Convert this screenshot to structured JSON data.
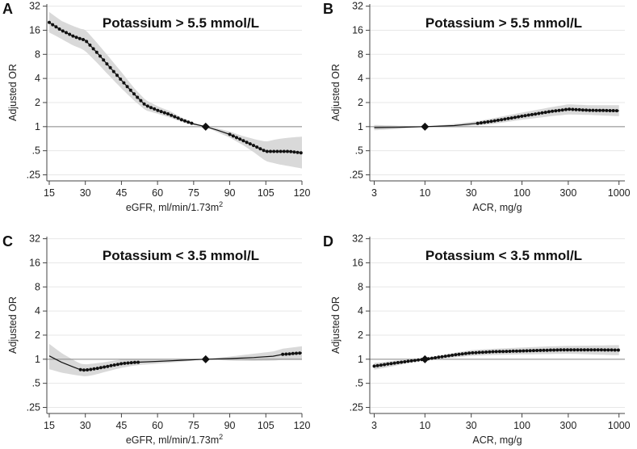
{
  "chart_data": [
    {
      "panel": "A",
      "type": "line",
      "title": "Potassium > 5.5 mmol/L",
      "xlabel": "eGFR, ml/min/1.73m",
      "xlabel_sup": "2",
      "ylabel": "Adjusted OR",
      "xscale": "linear",
      "yscale": "log",
      "xlim": [
        14,
        120
      ],
      "ylim": [
        0.21,
        34
      ],
      "xticks": [
        15,
        30,
        45,
        60,
        75,
        90,
        105,
        120
      ],
      "xtick_labels": [
        "15",
        "30",
        "45",
        "60",
        "75",
        "90",
        "105",
        "120"
      ],
      "yticks": [
        0.25,
        0.5,
        1,
        2,
        4,
        8,
        16,
        32
      ],
      "ytick_labels": [
        ".25",
        ".5",
        "1",
        "2",
        "4",
        "8",
        "16",
        "32"
      ],
      "grid": true,
      "reference_line": 1,
      "reference_point": [
        80,
        1
      ],
      "series": [
        {
          "name": "Adjusted OR",
          "x": [
            15,
            20,
            25,
            28,
            30,
            35,
            40,
            45,
            50,
            55,
            60,
            65,
            70,
            75,
            80,
            85,
            90,
            95,
            100,
            105,
            110,
            115,
            120
          ],
          "values": [
            20,
            16,
            13.5,
            12.5,
            12,
            8.3,
            5.6,
            3.8,
            2.6,
            1.85,
            1.6,
            1.42,
            1.22,
            1.08,
            1,
            0.9,
            0.8,
            0.68,
            0.58,
            0.49,
            0.49,
            0.49,
            0.47
          ],
          "lower": [
            15,
            12.5,
            10.3,
            9.5,
            8.8,
            6.2,
            4.3,
            3.0,
            2.15,
            1.6,
            1.45,
            1.3,
            1.15,
            1.05,
            1,
            0.85,
            0.73,
            0.6,
            0.48,
            0.37,
            0.34,
            0.32,
            0.3
          ],
          "upper": [
            27,
            21,
            18,
            16.7,
            16.3,
            11,
            7.3,
            4.8,
            3.1,
            2.15,
            1.8,
            1.57,
            1.3,
            1.12,
            1,
            0.95,
            0.87,
            0.77,
            0.7,
            0.65,
            0.7,
            0.73,
            0.75
          ],
          "marker_range": [
            [
              15,
              75
            ],
            [
              90,
              120
            ]
          ]
        }
      ]
    },
    {
      "panel": "B",
      "type": "line",
      "title": "Potassium > 5.5 mmol/L",
      "xlabel": "ACR, mg/g",
      "xlabel_sup": "",
      "ylabel": "Adjusted OR",
      "xscale": "log",
      "yscale": "log",
      "xlim": [
        2.7,
        1150
      ],
      "ylim": [
        0.21,
        34
      ],
      "xticks": [
        3,
        10,
        30,
        100,
        300,
        1000
      ],
      "xtick_labels": [
        "3",
        "10",
        "30",
        "100",
        "300",
        "1000"
      ],
      "yticks": [
        0.25,
        0.5,
        1,
        2,
        4,
        8,
        16,
        32
      ],
      "ytick_labels": [
        ".25",
        ".5",
        "1",
        "2",
        "4",
        "8",
        "16",
        "32"
      ],
      "grid": true,
      "reference_line": 1,
      "reference_point": [
        10,
        1
      ],
      "series": [
        {
          "name": "Adjusted OR",
          "x": [
            3,
            5,
            10,
            20,
            35,
            50,
            100,
            200,
            300,
            500,
            1000
          ],
          "values": [
            0.97,
            0.98,
            1,
            1.03,
            1.1,
            1.17,
            1.35,
            1.55,
            1.65,
            1.6,
            1.58
          ],
          "lower": [
            0.9,
            0.93,
            1,
            0.99,
            1.04,
            1.08,
            1.22,
            1.35,
            1.42,
            1.4,
            1.35
          ],
          "upper": [
            1.05,
            1.03,
            1,
            1.08,
            1.17,
            1.27,
            1.5,
            1.75,
            1.9,
            1.85,
            1.85
          ],
          "marker_range": [
            [
              35,
              1000
            ]
          ]
        }
      ]
    },
    {
      "panel": "C",
      "type": "line",
      "title": "Potassium < 3.5 mmol/L",
      "xlabel": "eGFR, ml/min/1.73m",
      "xlabel_sup": "2",
      "ylabel": "Adjusted OR",
      "xscale": "linear",
      "yscale": "log",
      "xlim": [
        14,
        120
      ],
      "ylim": [
        0.21,
        34
      ],
      "xticks": [
        15,
        30,
        45,
        60,
        75,
        90,
        105,
        120
      ],
      "xtick_labels": [
        "15",
        "30",
        "45",
        "60",
        "75",
        "90",
        "105",
        "120"
      ],
      "yticks": [
        0.25,
        0.5,
        1,
        2,
        4,
        8,
        16,
        32
      ],
      "ytick_labels": [
        ".25",
        ".5",
        "1",
        "2",
        "4",
        "8",
        "16",
        "32"
      ],
      "grid": true,
      "reference_line": 1,
      "reference_point": [
        80,
        1
      ],
      "series": [
        {
          "name": "Adjusted OR",
          "x": [
            15,
            20,
            25,
            28,
            30,
            33,
            38,
            45,
            50,
            53,
            60,
            70,
            80,
            90,
            100,
            108,
            112,
            120
          ],
          "values": [
            1.1,
            0.92,
            0.8,
            0.74,
            0.73,
            0.75,
            0.8,
            0.88,
            0.91,
            0.92,
            0.94,
            0.97,
            1,
            1.02,
            1.05,
            1.09,
            1.15,
            1.2
          ],
          "lower": [
            0.75,
            0.68,
            0.64,
            0.62,
            0.61,
            0.63,
            0.69,
            0.78,
            0.83,
            0.85,
            0.88,
            0.93,
            1,
            0.96,
            0.95,
            0.96,
            0.98,
            0.98
          ],
          "upper": [
            1.55,
            1.2,
            0.98,
            0.88,
            0.86,
            0.88,
            0.92,
            0.99,
            1.0,
            1.0,
            1.0,
            1.01,
            1,
            1.08,
            1.17,
            1.25,
            1.35,
            1.45
          ],
          "marker_range": [
            [
              28,
              53
            ],
            [
              112,
              120
            ]
          ]
        }
      ]
    },
    {
      "panel": "D",
      "type": "line",
      "title": "Potassium < 3.5 mmol/L",
      "xlabel": "ACR, mg/g",
      "xlabel_sup": "",
      "ylabel": "Adjusted OR",
      "xscale": "log",
      "yscale": "log",
      "xlim": [
        2.7,
        1150
      ],
      "ylim": [
        0.21,
        34
      ],
      "xticks": [
        3,
        10,
        30,
        100,
        300,
        1000
      ],
      "xtick_labels": [
        "3",
        "10",
        "30",
        "100",
        "300",
        "1000"
      ],
      "yticks": [
        0.25,
        0.5,
        1,
        2,
        4,
        8,
        16,
        32
      ],
      "ytick_labels": [
        ".25",
        ".5",
        "1",
        "2",
        "4",
        "8",
        "16",
        "32"
      ],
      "grid": true,
      "reference_line": 1,
      "reference_point": [
        10,
        1
      ],
      "series": [
        {
          "name": "Adjusted OR",
          "x": [
            3,
            5,
            10,
            20,
            30,
            50,
            100,
            200,
            300,
            500,
            1000
          ],
          "values": [
            0.82,
            0.9,
            1,
            1.13,
            1.2,
            1.24,
            1.27,
            1.3,
            1.31,
            1.31,
            1.3
          ],
          "lower": [
            0.74,
            0.83,
            1,
            1.05,
            1.1,
            1.13,
            1.15,
            1.16,
            1.17,
            1.15,
            1.12
          ],
          "upper": [
            0.9,
            0.96,
            1,
            1.2,
            1.3,
            1.35,
            1.4,
            1.45,
            1.47,
            1.48,
            1.5
          ],
          "marker_range": [
            [
              3,
              1000
            ]
          ]
        }
      ]
    }
  ]
}
